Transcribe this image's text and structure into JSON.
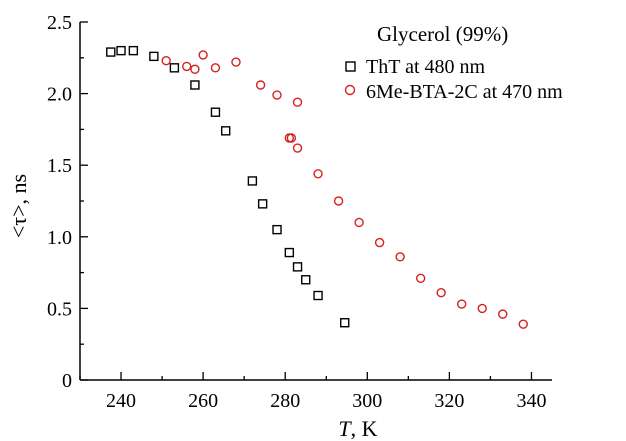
{
  "chart_data": {
    "type": "scatter",
    "title": "",
    "xlabel_italic": "T",
    "xlabel_rest": ", K",
    "ylabel": "<τ>, ns",
    "xlim": [
      230,
      345
    ],
    "ylim": [
      0,
      2.5
    ],
    "x_ticks": [
      240,
      260,
      280,
      300,
      320,
      340
    ],
    "x_tick_labels": [
      "240",
      "260",
      "280",
      "300",
      "320",
      "340"
    ],
    "y_ticks": [
      0,
      0.5,
      1.0,
      1.5,
      2.0,
      2.5
    ],
    "y_tick_labels": [
      "0",
      "0.5",
      "1.0",
      "1.5",
      "2.0",
      "2.5"
    ],
    "grid": false,
    "legend": {
      "title": "Glycerol (99%)",
      "placement": "top-right"
    },
    "series": [
      {
        "name": "ThT at 480 nm",
        "marker": "square",
        "color": "#000000",
        "points": [
          [
            237.5,
            2.29
          ],
          [
            240,
            2.3
          ],
          [
            243,
            2.3
          ],
          [
            248,
            2.26
          ],
          [
            253,
            2.18
          ],
          [
            258,
            2.06
          ],
          [
            263,
            1.87
          ],
          [
            265.5,
            1.74
          ],
          [
            272,
            1.39
          ],
          [
            274.5,
            1.23
          ],
          [
            278,
            1.05
          ],
          [
            281,
            0.89
          ],
          [
            283,
            0.79
          ],
          [
            285,
            0.7
          ],
          [
            288,
            0.59
          ],
          [
            294.5,
            0.4
          ]
        ]
      },
      {
        "name": "6Me-BTA-2C at 470 nm",
        "marker": "circle",
        "color": "#d62020",
        "points": [
          [
            251,
            2.23
          ],
          [
            256,
            2.19
          ],
          [
            258,
            2.17
          ],
          [
            260,
            2.27
          ],
          [
            263,
            2.18
          ],
          [
            268,
            2.22
          ],
          [
            274,
            2.06
          ],
          [
            278,
            1.99
          ],
          [
            283,
            1.94
          ],
          [
            281,
            1.69
          ],
          [
            281.5,
            1.69
          ],
          [
            283,
            1.62
          ],
          [
            288,
            1.44
          ],
          [
            293,
            1.25
          ],
          [
            298,
            1.1
          ],
          [
            303,
            0.96
          ],
          [
            308,
            0.86
          ],
          [
            313,
            0.71
          ],
          [
            318,
            0.61
          ],
          [
            323,
            0.53
          ],
          [
            328,
            0.5
          ],
          [
            333,
            0.46
          ],
          [
            338,
            0.39
          ]
        ]
      }
    ]
  }
}
